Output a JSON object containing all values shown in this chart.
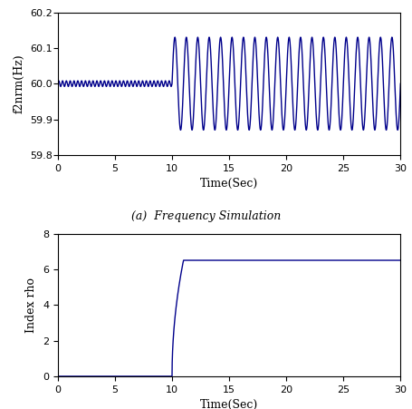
{
  "top_plot": {
    "xlim": [
      0,
      30
    ],
    "ylim": [
      59.8,
      60.2
    ],
    "yticks": [
      59.8,
      59.9,
      60.0,
      60.1,
      60.2
    ],
    "xticks": [
      0,
      5,
      10,
      15,
      20,
      25,
      30
    ],
    "xlabel": "Time(Sec)",
    "ylabel": "f2nrm(Hz)",
    "line_color": "#00008B",
    "phase1_end": 10.0,
    "phase1_mean": 60.0,
    "phase1_noise_amp": 0.008,
    "phase1_noise_freq": 3.0,
    "phase2_amp": 0.13,
    "phase2_freq": 1.0,
    "phase2_mean": 60.0,
    "caption": "(a)  Frequency Simulation"
  },
  "bottom_plot": {
    "xlim": [
      0,
      30
    ],
    "ylim": [
      0,
      8
    ],
    "yticks": [
      0,
      2,
      4,
      6,
      8
    ],
    "xticks": [
      0,
      5,
      10,
      15,
      20,
      25,
      30
    ],
    "xlabel": "Time(Sec)",
    "ylabel": "Index rho",
    "line_color": "#00008B",
    "transition_start": 10.0,
    "transition_end": 11.0,
    "steady_value": 6.5
  },
  "figure_bg": "#ffffff",
  "axes_bg": "#ffffff",
  "linewidth": 1.0
}
